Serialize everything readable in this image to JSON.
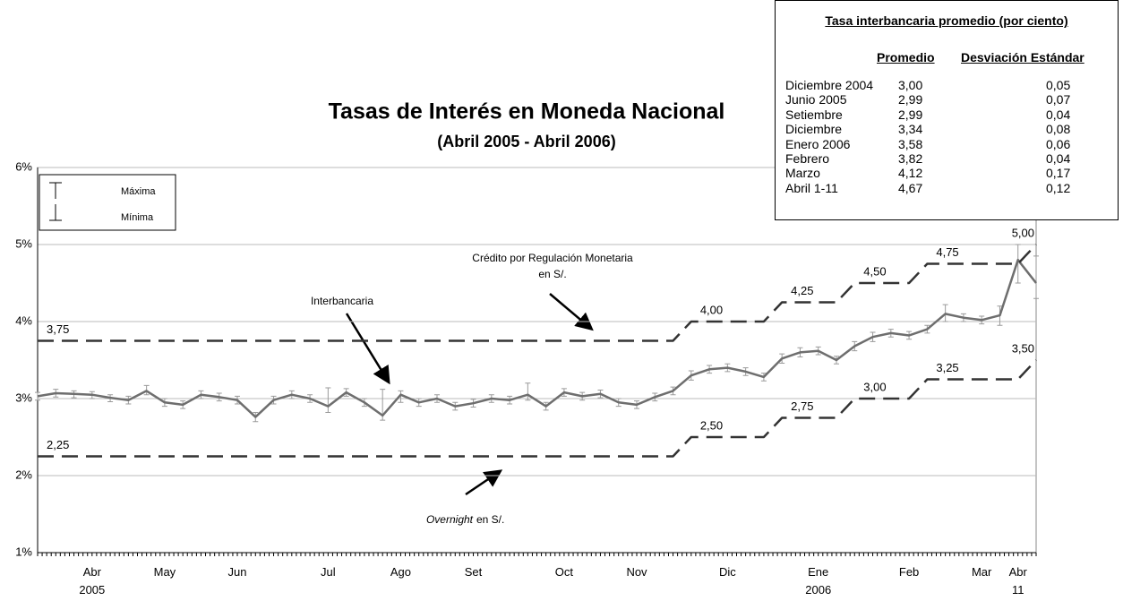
{
  "chart_data": {
    "type": "line",
    "title": "Tasas de Interés en Moneda Nacional",
    "subtitle": "(Abril 2005 - Abril 2006)",
    "categories": [
      null,
      null,
      null,
      "Abr\n2005",
      null,
      null,
      null,
      "May",
      null,
      null,
      null,
      "Jun",
      null,
      null,
      null,
      null,
      "Jul",
      null,
      null,
      null,
      "Ago",
      null,
      null,
      null,
      "Set",
      null,
      null,
      null,
      null,
      "Oct",
      null,
      null,
      null,
      "Nov",
      null,
      null,
      null,
      null,
      "Dic",
      null,
      null,
      null,
      null,
      "Ene\n2006",
      null,
      null,
      null,
      null,
      "Feb",
      null,
      null,
      null,
      "Mar",
      null,
      "Abr\n11",
      null
    ],
    "ylim": [
      1,
      6
    ],
    "yticks": [
      {
        "value": 1,
        "label": "1%"
      },
      {
        "value": 2,
        "label": "2%"
      },
      {
        "value": 3,
        "label": "3%"
      },
      {
        "value": 4,
        "label": "4%"
      },
      {
        "value": 5,
        "label": "5%"
      },
      {
        "value": 6,
        "label": "6%"
      }
    ],
    "grid": true,
    "error_legend": {
      "max": "Máxima",
      "min": "Mínima"
    },
    "series": [
      {
        "name": "Interbancaria",
        "color": "#6e6e6e",
        "style": "solid",
        "values": [
          3.03,
          3.07,
          3.06,
          3.05,
          3.01,
          2.98,
          3.1,
          2.95,
          2.92,
          3.05,
          3.02,
          2.98,
          2.76,
          2.98,
          3.05,
          3.0,
          2.9,
          3.08,
          2.95,
          2.78,
          3.05,
          2.95,
          3.0,
          2.9,
          2.94,
          3.0,
          2.98,
          3.05,
          2.9,
          3.08,
          3.03,
          3.06,
          2.95,
          2.92,
          3.02,
          3.1,
          3.3,
          3.38,
          3.4,
          3.35,
          3.28,
          3.52,
          3.6,
          3.62,
          3.5,
          3.68,
          3.8,
          3.85,
          3.82,
          3.9,
          4.1,
          4.05,
          4.02,
          4.08,
          4.8,
          4.5
        ],
        "max": [
          3.08,
          3.12,
          3.1,
          3.09,
          3.05,
          3.03,
          3.17,
          3.0,
          2.97,
          3.1,
          3.07,
          3.03,
          2.82,
          3.03,
          3.1,
          3.05,
          3.14,
          3.13,
          3.0,
          3.12,
          3.1,
          3.0,
          3.05,
          2.95,
          2.99,
          3.05,
          3.03,
          3.2,
          2.95,
          3.13,
          3.08,
          3.11,
          3.0,
          2.97,
          3.07,
          3.15,
          3.36,
          3.43,
          3.45,
          3.4,
          3.33,
          3.58,
          3.66,
          3.67,
          3.55,
          3.74,
          3.86,
          3.9,
          3.87,
          3.95,
          4.22,
          4.1,
          4.07,
          4.2,
          5.0,
          4.85
        ],
        "min": [
          2.98,
          3.02,
          3.01,
          3.0,
          2.96,
          2.93,
          3.05,
          2.9,
          2.87,
          3.0,
          2.97,
          2.93,
          2.7,
          2.93,
          3.0,
          2.95,
          2.82,
          3.03,
          2.9,
          2.72,
          2.95,
          2.9,
          2.95,
          2.85,
          2.89,
          2.95,
          2.93,
          2.98,
          2.85,
          3.03,
          2.98,
          3.01,
          2.9,
          2.87,
          2.97,
          3.05,
          3.24,
          3.33,
          3.35,
          3.3,
          3.23,
          3.46,
          3.54,
          3.57,
          3.45,
          3.62,
          3.74,
          3.8,
          3.77,
          3.85,
          4.0,
          4.0,
          3.97,
          3.95,
          4.5,
          4.3
        ]
      },
      {
        "name": "Crédito por Regulación Monetaria",
        "color": "#333333",
        "style": "dashed",
        "values": [
          3.75,
          3.75,
          3.75,
          3.75,
          3.75,
          3.75,
          3.75,
          3.75,
          3.75,
          3.75,
          3.75,
          3.75,
          3.75,
          3.75,
          3.75,
          3.75,
          3.75,
          3.75,
          3.75,
          3.75,
          3.75,
          3.75,
          3.75,
          3.75,
          3.75,
          3.75,
          3.75,
          3.75,
          3.75,
          3.75,
          3.75,
          3.75,
          3.75,
          3.75,
          3.75,
          3.75,
          4.0,
          4.0,
          4.0,
          4.0,
          4.0,
          4.25,
          4.25,
          4.25,
          4.25,
          4.5,
          4.5,
          4.5,
          4.5,
          4.75,
          4.75,
          4.75,
          4.75,
          4.75,
          4.75,
          5.0
        ],
        "value_labels": [
          "3,75",
          null,
          null,
          null,
          null,
          null,
          null,
          null,
          null,
          null,
          null,
          null,
          null,
          null,
          null,
          null,
          null,
          null,
          null,
          null,
          null,
          null,
          null,
          null,
          null,
          null,
          null,
          null,
          null,
          null,
          null,
          null,
          null,
          null,
          null,
          null,
          "4,00",
          null,
          null,
          null,
          null,
          "4,25",
          null,
          null,
          null,
          "4,50",
          null,
          null,
          null,
          "4,75",
          null,
          null,
          null,
          null,
          null,
          "5,00"
        ]
      },
      {
        "name": "Overnight",
        "color": "#333333",
        "style": "dashed",
        "values": [
          2.25,
          2.25,
          2.25,
          2.25,
          2.25,
          2.25,
          2.25,
          2.25,
          2.25,
          2.25,
          2.25,
          2.25,
          2.25,
          2.25,
          2.25,
          2.25,
          2.25,
          2.25,
          2.25,
          2.25,
          2.25,
          2.25,
          2.25,
          2.25,
          2.25,
          2.25,
          2.25,
          2.25,
          2.25,
          2.25,
          2.25,
          2.25,
          2.25,
          2.25,
          2.25,
          2.25,
          2.5,
          2.5,
          2.5,
          2.5,
          2.5,
          2.75,
          2.75,
          2.75,
          2.75,
          3.0,
          3.0,
          3.0,
          3.0,
          3.25,
          3.25,
          3.25,
          3.25,
          3.25,
          3.25,
          3.5
        ],
        "value_labels": [
          "2,25",
          null,
          null,
          null,
          null,
          null,
          null,
          null,
          null,
          null,
          null,
          null,
          null,
          null,
          null,
          null,
          null,
          null,
          null,
          null,
          null,
          null,
          null,
          null,
          null,
          null,
          null,
          null,
          null,
          null,
          null,
          null,
          null,
          null,
          null,
          null,
          "2,50",
          null,
          null,
          null,
          null,
          "2,75",
          null,
          null,
          null,
          "3,00",
          null,
          null,
          null,
          "3,25",
          null,
          null,
          null,
          null,
          null,
          "3,50"
        ]
      }
    ],
    "annotations": [
      "en S/.",
      "en S/."
    ]
  },
  "table": {
    "title": "Tasa interbancaria promedio (por ciento)",
    "columns": [
      "Promedio",
      "Desviación Estándar"
    ],
    "rows": [
      [
        "Diciembre 2004",
        "3,00",
        "0,05"
      ],
      [
        "Junio 2005",
        "2,99",
        "0,07"
      ],
      [
        "Setiembre",
        "2,99",
        "0,04"
      ],
      [
        "Diciembre",
        "3,34",
        "0,08"
      ],
      [
        "Enero 2006",
        "3,58",
        "0,06"
      ],
      [
        "Febrero",
        "3,82",
        "0,04"
      ],
      [
        "Marzo",
        "4,12",
        "0,17"
      ],
      [
        "Abril 1-11",
        "4,67",
        "0,12"
      ]
    ]
  }
}
